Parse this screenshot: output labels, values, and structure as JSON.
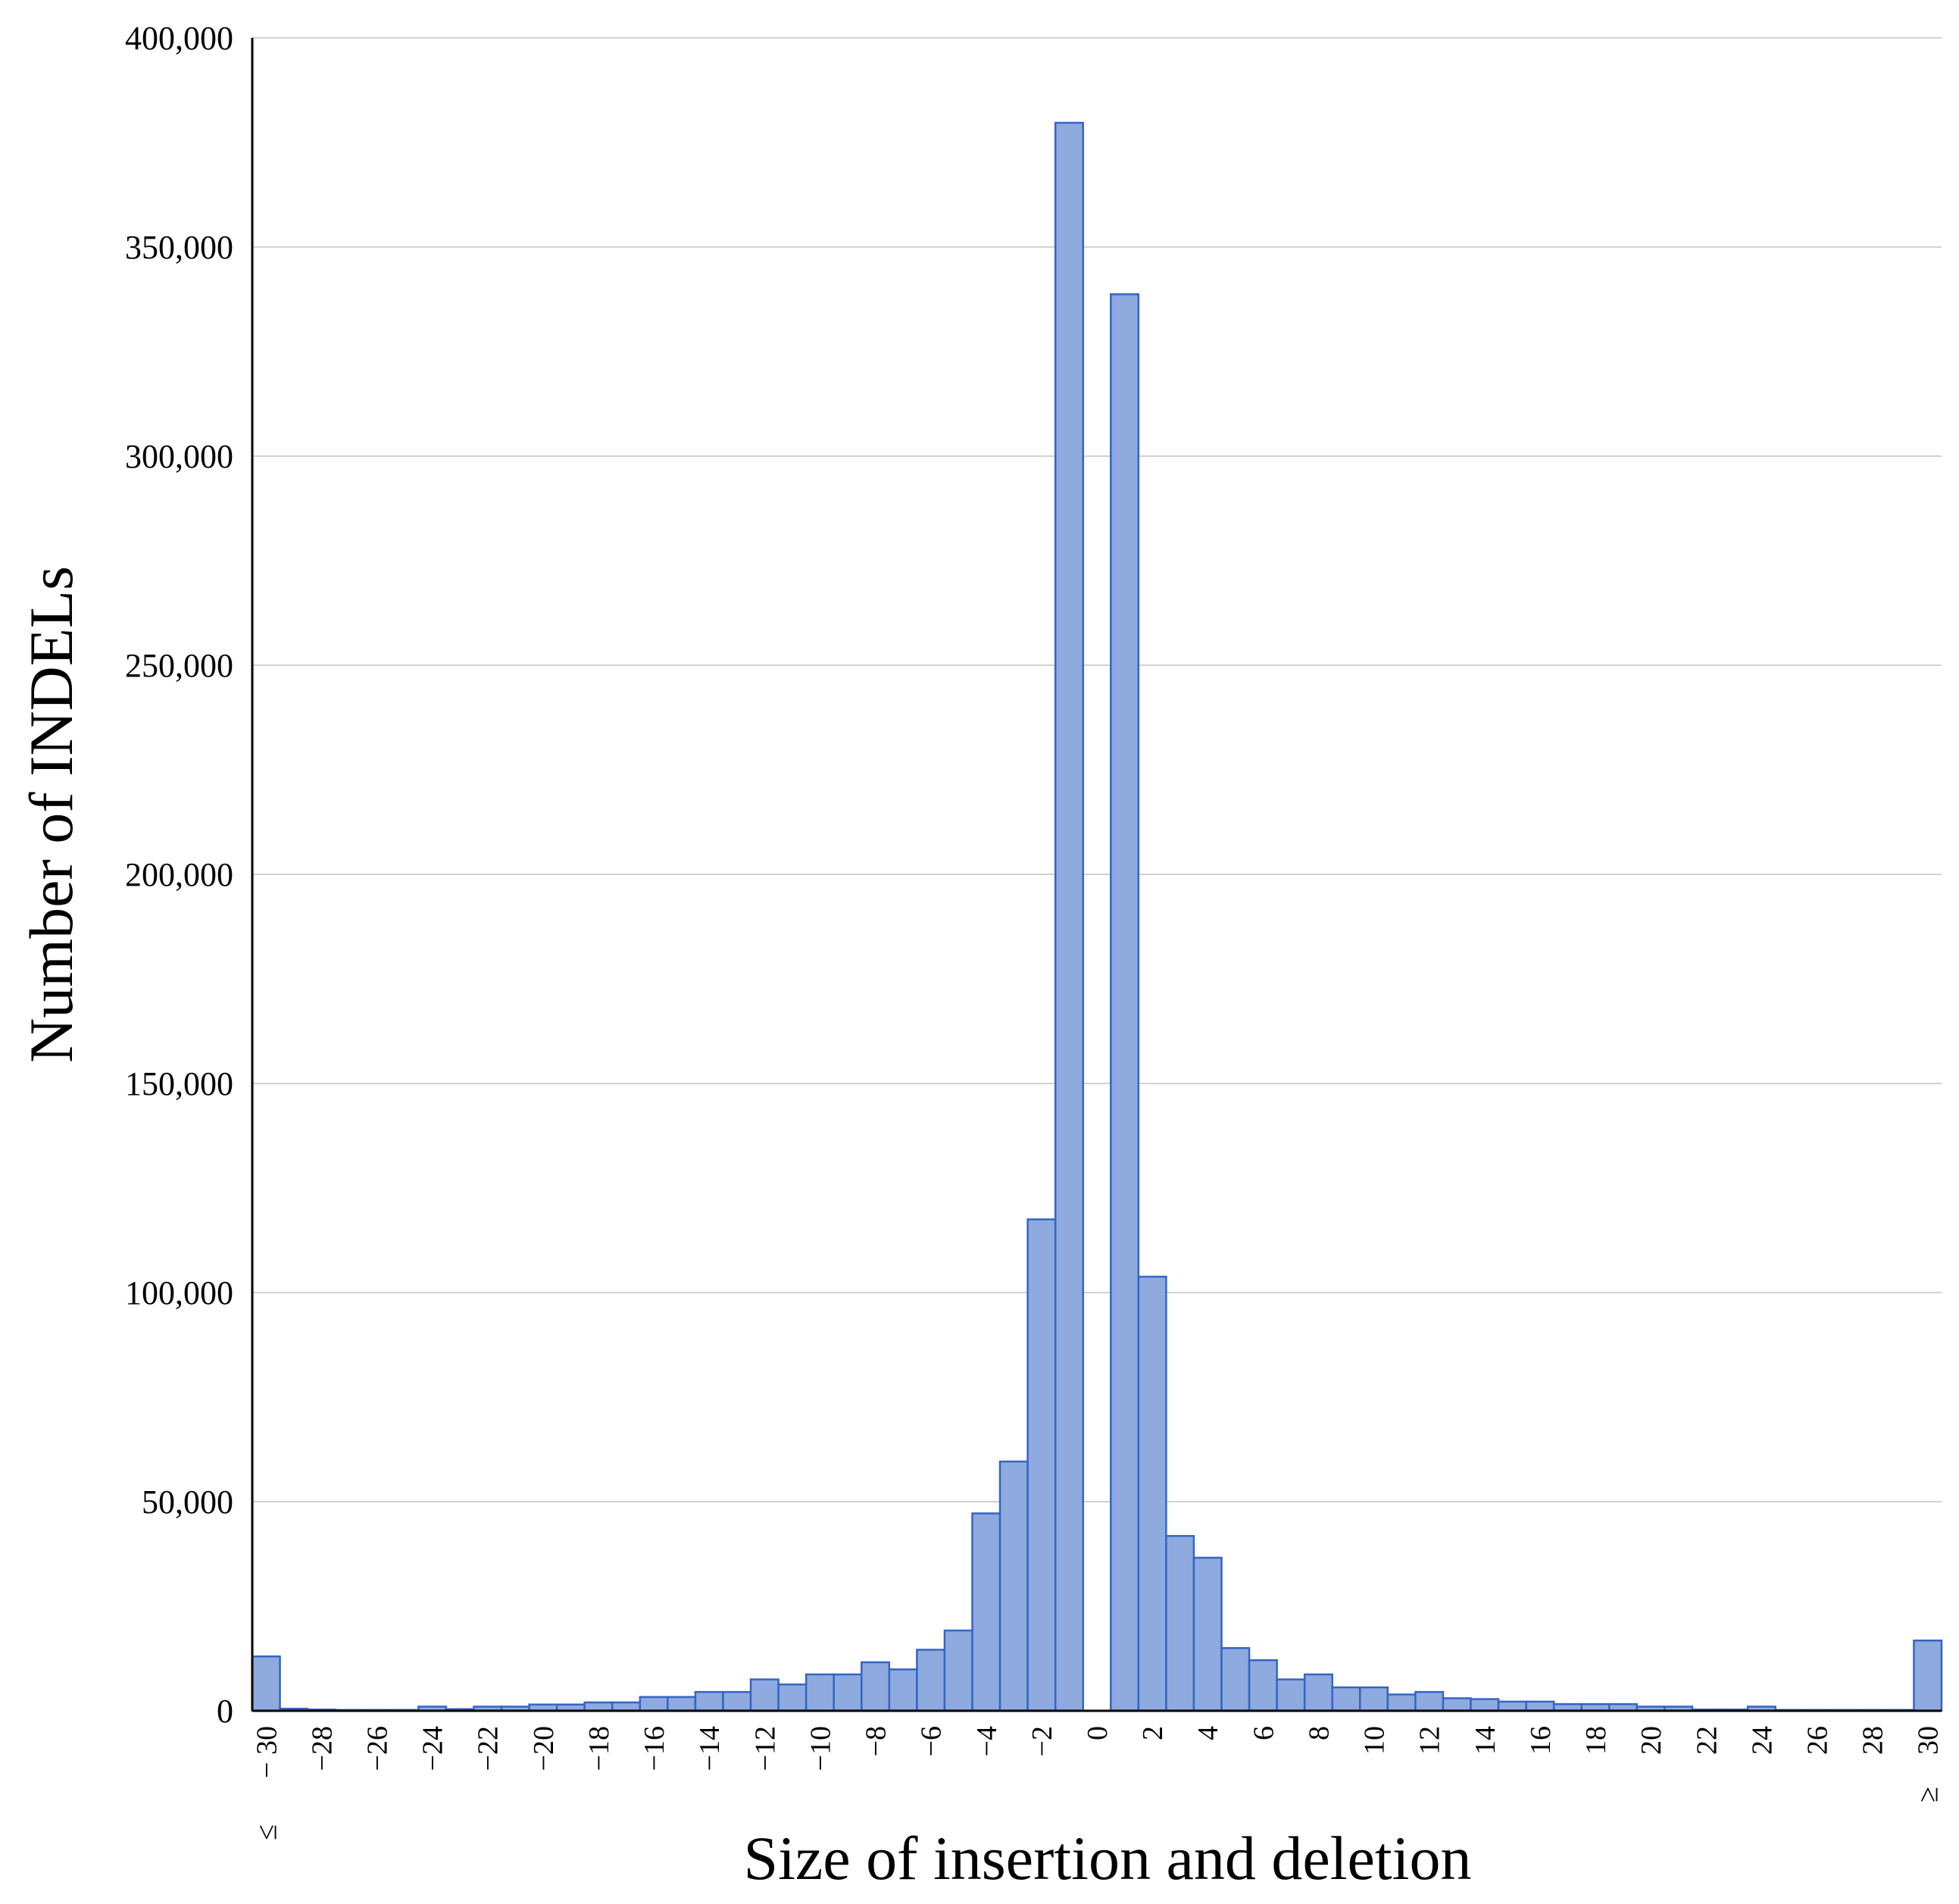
{
  "chart_data": {
    "type": "bar",
    "xlabel": "Size of insertion and deletion",
    "ylabel": "Number of INDELs",
    "ylim": [
      0,
      400000
    ],
    "y_ticks": [
      "0",
      "50,000",
      "100,000",
      "150,000",
      "200,000",
      "250,000",
      "300,000",
      "350,000",
      "400,000"
    ],
    "y_tick_values": [
      0,
      50000,
      100000,
      150000,
      200000,
      250000,
      300000,
      350000,
      400000
    ],
    "grid": "horizontal",
    "categories": [
      -30,
      -29,
      -28,
      -27,
      -26,
      -25,
      -24,
      -23,
      -22,
      -21,
      -20,
      -19,
      -18,
      -17,
      -16,
      -15,
      -14,
      -13,
      -12,
      -11,
      -10,
      -9,
      -8,
      -7,
      -6,
      -5,
      -4,
      -3,
      -2,
      -1,
      0,
      1,
      2,
      3,
      4,
      5,
      6,
      7,
      8,
      9,
      10,
      11,
      12,
      13,
      14,
      15,
      16,
      17,
      18,
      19,
      20,
      21,
      22,
      23,
      24,
      25,
      26,
      27,
      28,
      29,
      30
    ],
    "values": [
      13000,
      500,
      300,
      200,
      200,
      200,
      1000,
      400,
      1000,
      1000,
      1500,
      1500,
      2000,
      2000,
      3300,
      3300,
      4500,
      4500,
      7500,
      6300,
      8700,
      8700,
      11600,
      9900,
      14600,
      19200,
      47200,
      59600,
      117500,
      379700,
      0,
      338700,
      103800,
      41800,
      36600,
      15000,
      12100,
      7500,
      8700,
      5600,
      5600,
      3900,
      4500,
      3000,
      2800,
      2200,
      2200,
      1600,
      1600,
      1600,
      1000,
      1000,
      300,
      300,
      1000,
      200,
      200,
      200,
      200,
      200,
      16800
    ],
    "x_tick_labels": [
      "− 30",
      "−28",
      "−26",
      "−24",
      "−22",
      "−20",
      "−18",
      "−16",
      "−14",
      "−12",
      "−10",
      "−8",
      "−6",
      "−4",
      "−2",
      "0",
      "2",
      "4",
      "6",
      "8",
      "10",
      "12",
      "14",
      "16",
      "18",
      "20",
      "22",
      "24",
      "26",
      "28",
      "30"
    ],
    "x_tick_prefix_left": "≤",
    "x_tick_prefix_right": "≥",
    "colors": {
      "bar_fill": "#8eaadf",
      "bar_stroke": "#3565c4"
    }
  }
}
